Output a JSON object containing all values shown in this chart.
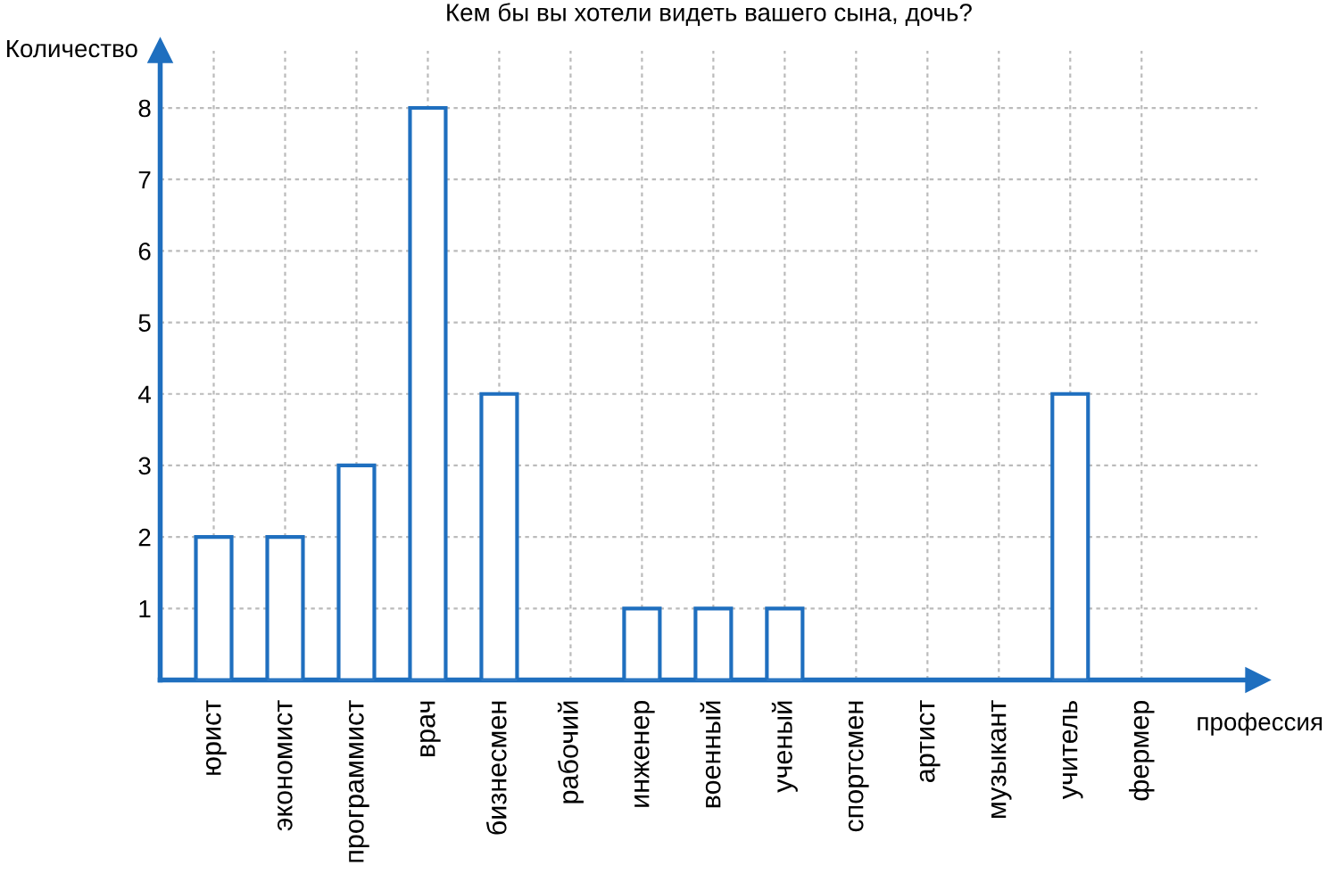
{
  "chart_data": {
    "type": "bar",
    "title": "Кем бы вы хотели видеть вашего сына, дочь?",
    "xlabel": "профессия",
    "ylabel": "Количество",
    "categories": [
      "юрист",
      "экономист",
      "программист",
      "врач",
      "бизнесмен",
      "рабочий",
      "инженер",
      "военный",
      "ученый",
      "спортсмен",
      "артист",
      "музыкант",
      "учитель",
      "фермер"
    ],
    "values": [
      2,
      2,
      3,
      8,
      4,
      0,
      1,
      1,
      1,
      0,
      0,
      0,
      4,
      0
    ],
    "color": "#1f6fbf",
    "ylim": [
      0,
      8.8
    ],
    "yticks": [
      1,
      2,
      3,
      4,
      5,
      6,
      7,
      8
    ],
    "grid": true,
    "legend": false
  }
}
